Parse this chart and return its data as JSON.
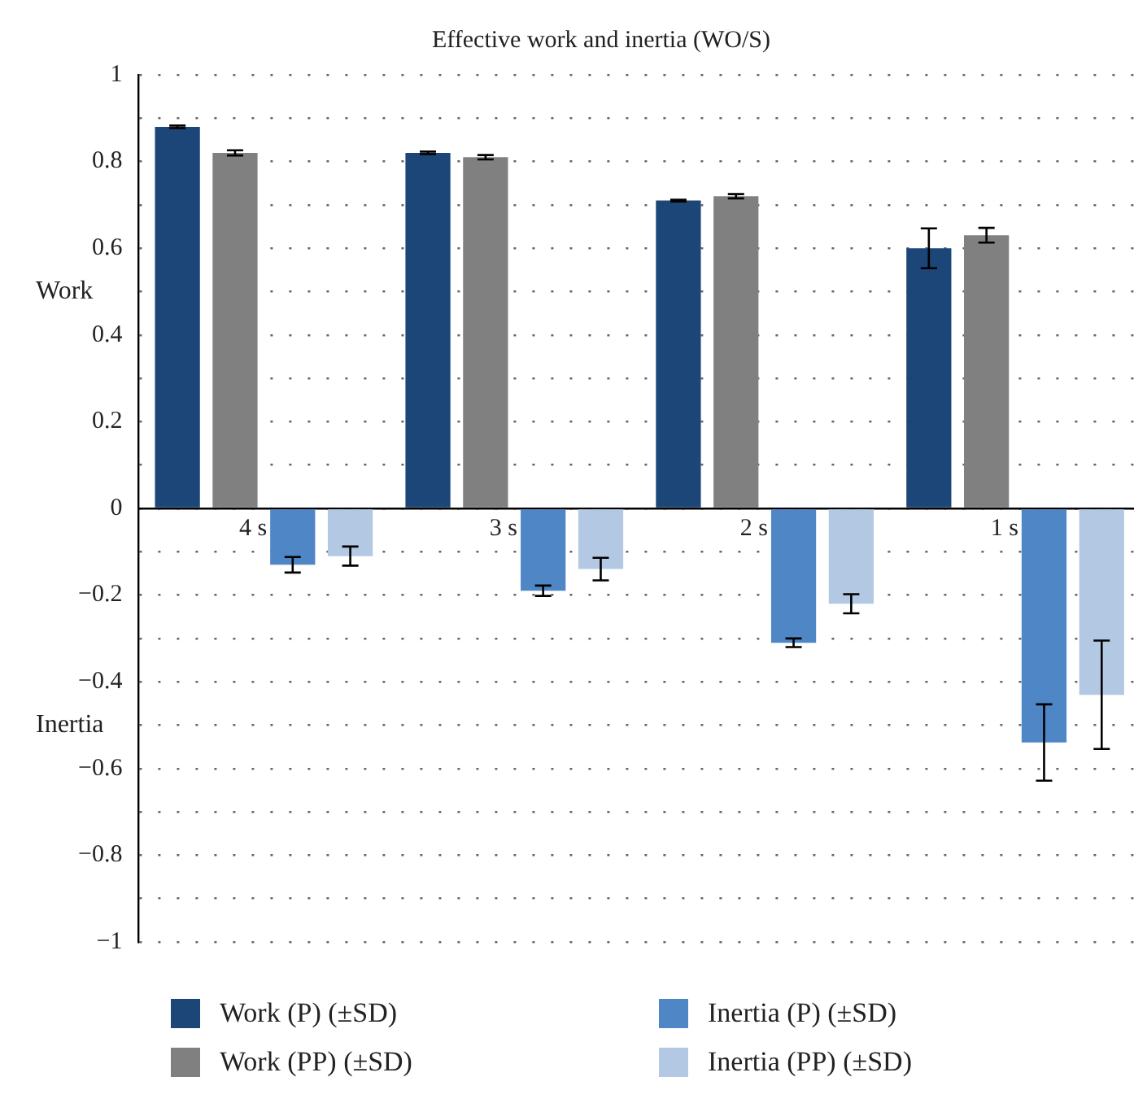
{
  "chart_data": {
    "type": "bar",
    "title": "Effective work and inertia (WO/S)",
    "ylabel": "Work",
    "annotations": [
      "Inertia"
    ],
    "categories": [
      "4 s",
      "3 s",
      "2 s",
      "1 s"
    ],
    "series": [
      {
        "name": "Work (P) (±SD)",
        "color": "#1b4677",
        "values": [
          0.88,
          0.82,
          0.71,
          0.6
        ],
        "errors": [
          0.003,
          0.003,
          0.002,
          0.046
        ]
      },
      {
        "name": "Work (PP) (±SD)",
        "color": "#808080",
        "values": [
          0.82,
          0.81,
          0.72,
          0.63
        ],
        "errors": [
          0.006,
          0.005,
          0.005,
          0.017
        ]
      },
      {
        "name": "Inertia (P) (±SD)",
        "color": "#4f86c6",
        "values": [
          -0.13,
          -0.19,
          -0.31,
          -0.54
        ],
        "errors": [
          0.018,
          0.012,
          0.01,
          0.088
        ]
      },
      {
        "name": "Inertia (PP) (±SD)",
        "color": "#b3c9e3",
        "values": [
          -0.11,
          -0.14,
          -0.22,
          -0.43
        ],
        "errors": [
          0.022,
          0.026,
          0.022,
          0.125
        ]
      }
    ],
    "ylim": [
      -1,
      1
    ],
    "yticks": [
      {
        "value": -1,
        "label": "−1"
      },
      {
        "value": -0.9,
        "label": null
      },
      {
        "value": -0.8,
        "label": "−0.8"
      },
      {
        "value": -0.7,
        "label": null
      },
      {
        "value": -0.6,
        "label": "−0.6"
      },
      {
        "value": -0.5,
        "label": null
      },
      {
        "value": -0.4,
        "label": "−0.4"
      },
      {
        "value": -0.3,
        "label": null
      },
      {
        "value": -0.2,
        "label": "−0.2"
      },
      {
        "value": -0.1,
        "label": null
      },
      0,
      {
        "value": 0.1,
        "label": null
      },
      0.2,
      {
        "value": 0.3,
        "label": null
      },
      0.4,
      {
        "value": 0.5,
        "label": null
      },
      0.6,
      {
        "value": 0.7,
        "label": null
      },
      0.8,
      {
        "value": 0.9,
        "label": null
      },
      1
    ],
    "grid": "y",
    "legend": "bottom"
  }
}
